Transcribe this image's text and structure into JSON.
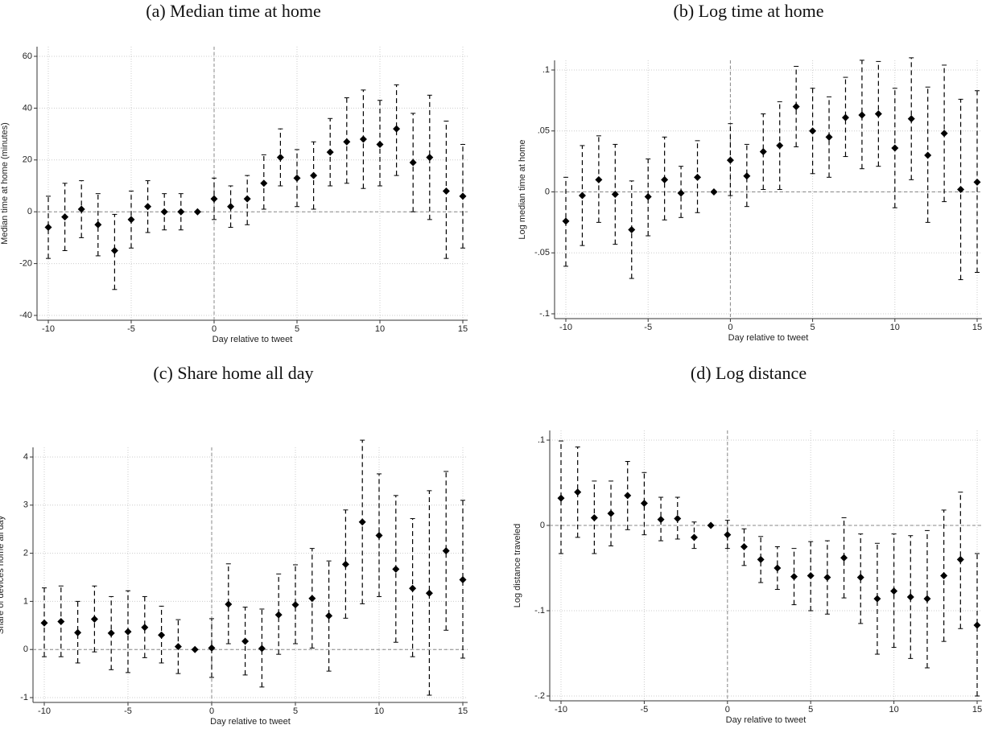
{
  "chart_data": [
    {
      "type": "errorbar",
      "title": "(a) Median time at home",
      "xlabel": "Day relative to tweet",
      "ylabel": "Median time at home (minutes)",
      "x": [
        -10,
        -9,
        -8,
        -7,
        -6,
        -5,
        -4,
        -3,
        -2,
        -1,
        0,
        1,
        2,
        3,
        4,
        5,
        6,
        7,
        8,
        9,
        10,
        11,
        12,
        13,
        14,
        15
      ],
      "values": [
        -6,
        -2,
        1,
        -5,
        -15,
        -3,
        2,
        0,
        0,
        0,
        5,
        2,
        5,
        11,
        21,
        13,
        14,
        23,
        27,
        28,
        26,
        32,
        19,
        21,
        8,
        6
      ],
      "lower": [
        -18,
        -15,
        -10,
        -17,
        -30,
        -14,
        -8,
        -7,
        -7,
        null,
        -3,
        -6,
        -5,
        1,
        10,
        2,
        1,
        10,
        11,
        9,
        10,
        14,
        0,
        -3,
        -18,
        -14
      ],
      "upper": [
        6,
        11,
        12,
        7,
        -1,
        8,
        12,
        7,
        7,
        null,
        13,
        10,
        14,
        22,
        32,
        24,
        27,
        36,
        44,
        47,
        43,
        49,
        38,
        45,
        35,
        26
      ],
      "color": "#000000",
      "xlim": [
        -10,
        15
      ],
      "xticks": [
        -10,
        -5,
        0,
        5,
        10,
        15
      ],
      "ylim": [
        -40,
        60
      ],
      "yticks": [
        -40,
        -20,
        0,
        20,
        40,
        60
      ],
      "grid": true,
      "hline": 0,
      "vline": 0
    },
    {
      "type": "errorbar",
      "title": "(b) Log time at home",
      "xlabel": "Day relative to tweet",
      "ylabel": "Log median time at home",
      "x": [
        -10,
        -9,
        -8,
        -7,
        -6,
        -5,
        -4,
        -3,
        -2,
        -1,
        0,
        1,
        2,
        3,
        4,
        5,
        6,
        7,
        8,
        9,
        10,
        11,
        12,
        13,
        14,
        15
      ],
      "values": [
        -0.024,
        -0.003,
        0.01,
        -0.002,
        -0.031,
        -0.004,
        0.01,
        -0.001,
        0.012,
        0,
        0.026,
        0.013,
        0.033,
        0.038,
        0.07,
        0.05,
        0.045,
        0.061,
        0.063,
        0.064,
        0.036,
        0.06,
        0.03,
        0.048,
        0.002,
        0.008
      ],
      "lower": [
        -0.061,
        -0.044,
        -0.025,
        -0.043,
        -0.071,
        -0.036,
        -0.023,
        -0.021,
        -0.017,
        null,
        -0.003,
        -0.012,
        0.002,
        0.002,
        0.037,
        0.015,
        0.012,
        0.029,
        0.019,
        0.021,
        -0.013,
        0.01,
        -0.025,
        -0.008,
        -0.072,
        -0.066
      ],
      "upper": [
        0.012,
        0.038,
        0.046,
        0.039,
        0.009,
        0.027,
        0.045,
        0.021,
        0.042,
        null,
        0.056,
        0.039,
        0.064,
        0.074,
        0.103,
        0.085,
        0.078,
        0.094,
        0.108,
        0.107,
        0.085,
        0.11,
        0.086,
        0.104,
        0.076,
        0.083
      ],
      "color": "#000000",
      "xlim": [
        -10,
        15
      ],
      "xticks": [
        -10,
        -5,
        0,
        5,
        10,
        15
      ],
      "ylim": [
        -0.1,
        0.1
      ],
      "yticks": [
        {
          "value": -0.1,
          "label": "-.1"
        },
        {
          "value": -0.05,
          "label": "-.05"
        },
        0,
        {
          "value": 0.05,
          "label": ".05"
        },
        {
          "value": 0.1,
          "label": ".1"
        }
      ],
      "grid": true,
      "hline": 0,
      "vline": 0
    },
    {
      "type": "errorbar",
      "title": "(c) Share home all day",
      "xlabel": "Day relative to tweet",
      "ylabel": "Share of devices home all day",
      "x": [
        -10,
        -9,
        -8,
        -7,
        -6,
        -5,
        -4,
        -3,
        -2,
        -1,
        0,
        1,
        2,
        3,
        4,
        5,
        6,
        7,
        8,
        9,
        10,
        11,
        12,
        13,
        14,
        15
      ],
      "values": [
        0.55,
        0.58,
        0.35,
        0.63,
        0.34,
        0.37,
        0.46,
        0.3,
        0.06,
        0,
        0.03,
        0.94,
        0.17,
        0.02,
        0.72,
        0.93,
        1.06,
        0.7,
        1.77,
        2.65,
        2.37,
        1.67,
        1.27,
        1.17,
        2.05,
        1.45
      ],
      "lower": [
        -0.15,
        -0.15,
        -0.28,
        -0.05,
        -0.42,
        -0.48,
        -0.17,
        -0.28,
        -0.5,
        null,
        -0.58,
        0.12,
        -0.53,
        -0.78,
        -0.1,
        0.12,
        0.03,
        -0.45,
        0.65,
        0.95,
        1.1,
        0.15,
        -0.15,
        -0.95,
        0.4,
        -0.18
      ],
      "upper": [
        1.28,
        1.32,
        1.0,
        1.32,
        1.1,
        1.22,
        1.1,
        0.9,
        0.62,
        null,
        0.64,
        1.78,
        0.88,
        0.84,
        1.57,
        1.76,
        2.1,
        1.84,
        2.9,
        4.35,
        3.65,
        3.2,
        2.72,
        3.3,
        3.7,
        3.1
      ],
      "color": "#000000",
      "xlim": [
        -10,
        15
      ],
      "xticks": [
        -10,
        -5,
        0,
        5,
        10,
        15
      ],
      "ylim": [
        -1,
        4
      ],
      "yticks": [
        -1,
        0,
        1,
        2,
        3,
        4
      ],
      "grid": true,
      "hline": 0,
      "vline": 0
    },
    {
      "type": "errorbar",
      "title": "(d) Log distance",
      "xlabel": "Day relative to tweet",
      "ylabel": "Log distance traveled",
      "x": [
        -10,
        -9,
        -8,
        -7,
        -6,
        -5,
        -4,
        -3,
        -2,
        -1,
        0,
        1,
        2,
        3,
        4,
        5,
        6,
        7,
        8,
        9,
        10,
        11,
        12,
        13,
        14,
        15
      ],
      "values": [
        0.032,
        0.039,
        0.009,
        0.014,
        0.035,
        0.026,
        0.007,
        0.008,
        -0.014,
        0,
        -0.011,
        -0.025,
        -0.04,
        -0.05,
        -0.06,
        -0.059,
        -0.061,
        -0.038,
        -0.061,
        -0.086,
        -0.077,
        -0.084,
        -0.086,
        -0.059,
        -0.04,
        -0.117
      ],
      "lower": [
        -0.033,
        -0.014,
        -0.033,
        -0.024,
        -0.005,
        -0.011,
        -0.018,
        -0.016,
        -0.027,
        null,
        -0.027,
        -0.047,
        -0.067,
        -0.075,
        -0.093,
        -0.1,
        -0.104,
        -0.085,
        -0.115,
        -0.151,
        -0.143,
        -0.156,
        -0.167,
        -0.136,
        -0.121,
        -0.2
      ],
      "upper": [
        0.099,
        0.092,
        0.052,
        0.052,
        0.075,
        0.062,
        0.033,
        0.033,
        0.004,
        null,
        0.006,
        -0.004,
        -0.013,
        -0.025,
        -0.027,
        -0.019,
        -0.018,
        0.009,
        -0.01,
        -0.021,
        -0.01,
        -0.012,
        -0.006,
        0.018,
        0.039,
        -0.033
      ],
      "color": "#000000",
      "xlim": [
        -10,
        15
      ],
      "xticks": [
        -10,
        -5,
        0,
        5,
        10,
        15
      ],
      "ylim": [
        -0.2,
        0.1
      ],
      "yticks": [
        {
          "value": -0.2,
          "label": "-.2"
        },
        {
          "value": -0.1,
          "label": "-.1"
        },
        0,
        {
          "value": 0.1,
          "label": ".1"
        }
      ],
      "grid": true,
      "hline": 0,
      "vline": 0
    }
  ]
}
